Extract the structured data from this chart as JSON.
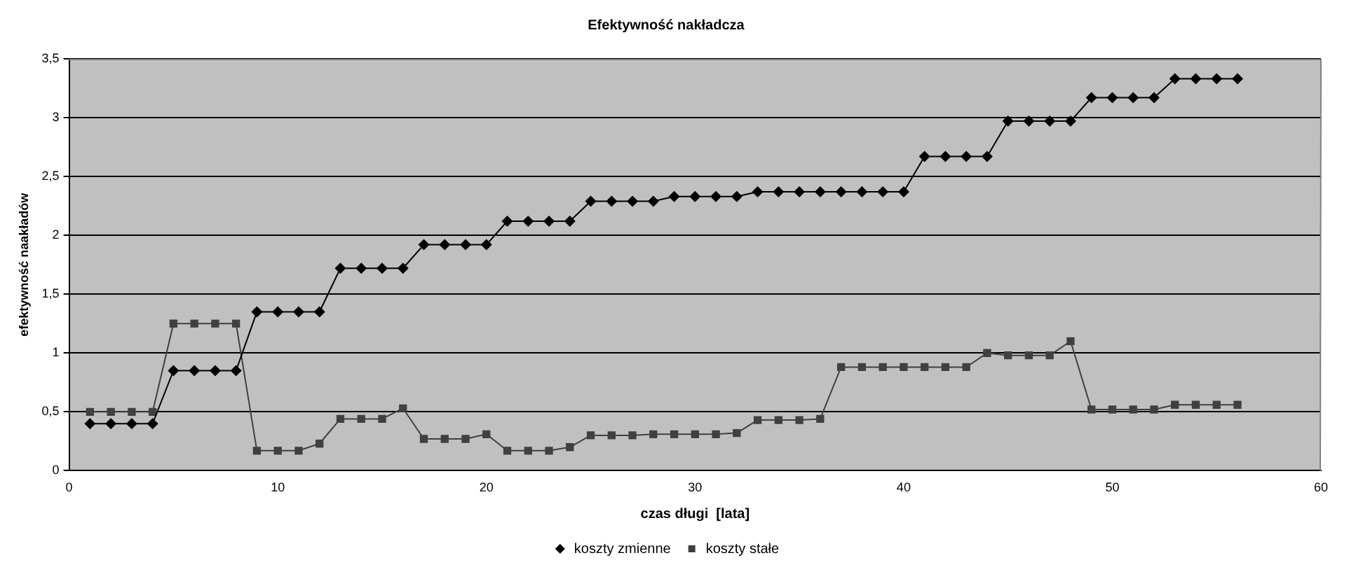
{
  "chart_data": {
    "type": "line",
    "title": "Efektywność nakładcza",
    "xlabel": "czas długi  [lata]",
    "ylabel": "efektywność naakładów",
    "x": [
      1,
      2,
      3,
      4,
      5,
      6,
      7,
      8,
      9,
      10,
      11,
      12,
      13,
      14,
      15,
      16,
      17,
      18,
      19,
      20,
      21,
      22,
      23,
      24,
      25,
      26,
      27,
      28,
      29,
      30,
      31,
      32,
      33,
      34,
      35,
      36,
      37,
      38,
      39,
      40,
      41,
      42,
      43,
      44,
      45,
      46,
      47,
      48,
      49,
      50,
      51,
      52,
      53,
      54,
      55,
      56
    ],
    "series": [
      {
        "name": "koszty zmienne",
        "color": "#000000",
        "marker": "diamond",
        "values": [
          0.4,
          0.4,
          0.4,
          0.4,
          0.85,
          0.85,
          0.85,
          0.85,
          1.35,
          1.35,
          1.35,
          1.35,
          1.72,
          1.72,
          1.72,
          1.72,
          1.92,
          1.92,
          1.92,
          1.92,
          2.12,
          2.12,
          2.12,
          2.12,
          2.29,
          2.29,
          2.29,
          2.29,
          2.33,
          2.33,
          2.33,
          2.33,
          2.37,
          2.37,
          2.37,
          2.37,
          2.37,
          2.37,
          2.37,
          2.37,
          2.67,
          2.67,
          2.67,
          2.67,
          2.97,
          2.97,
          2.97,
          2.97,
          3.17,
          3.17,
          3.17,
          3.17,
          3.33,
          3.33,
          3.33,
          3.33
        ]
      },
      {
        "name": "koszty stałe",
        "color": "#404040",
        "marker": "square",
        "values": [
          0.5,
          0.5,
          0.5,
          0.5,
          1.25,
          1.25,
          1.25,
          1.25,
          0.17,
          0.17,
          0.17,
          0.23,
          0.44,
          0.44,
          0.44,
          0.53,
          0.27,
          0.27,
          0.27,
          0.31,
          0.17,
          0.17,
          0.17,
          0.2,
          0.3,
          0.3,
          0.3,
          0.31,
          0.31,
          0.31,
          0.31,
          0.32,
          0.43,
          0.43,
          0.43,
          0.44,
          0.88,
          0.88,
          0.88,
          0.88,
          0.88,
          0.88,
          0.88,
          1.0,
          0.98,
          0.98,
          0.98,
          1.1,
          0.52,
          0.52,
          0.52,
          0.52,
          0.56,
          0.56,
          0.56,
          0.56
        ]
      }
    ],
    "xlim": [
      0,
      60
    ],
    "xticks": [
      0,
      10,
      20,
      30,
      40,
      50,
      60
    ],
    "ylim": [
      0,
      3.5
    ],
    "yticks": [
      0,
      {
        "value": 0.5,
        "label": "0,5"
      },
      1,
      {
        "value": 1.5,
        "label": "1,5"
      },
      2,
      {
        "value": 2.5,
        "label": "2,5"
      },
      3,
      {
        "value": 3.5,
        "label": "3,5"
      }
    ],
    "grid": "y",
    "legend": "bottom",
    "line_style": "solid"
  }
}
